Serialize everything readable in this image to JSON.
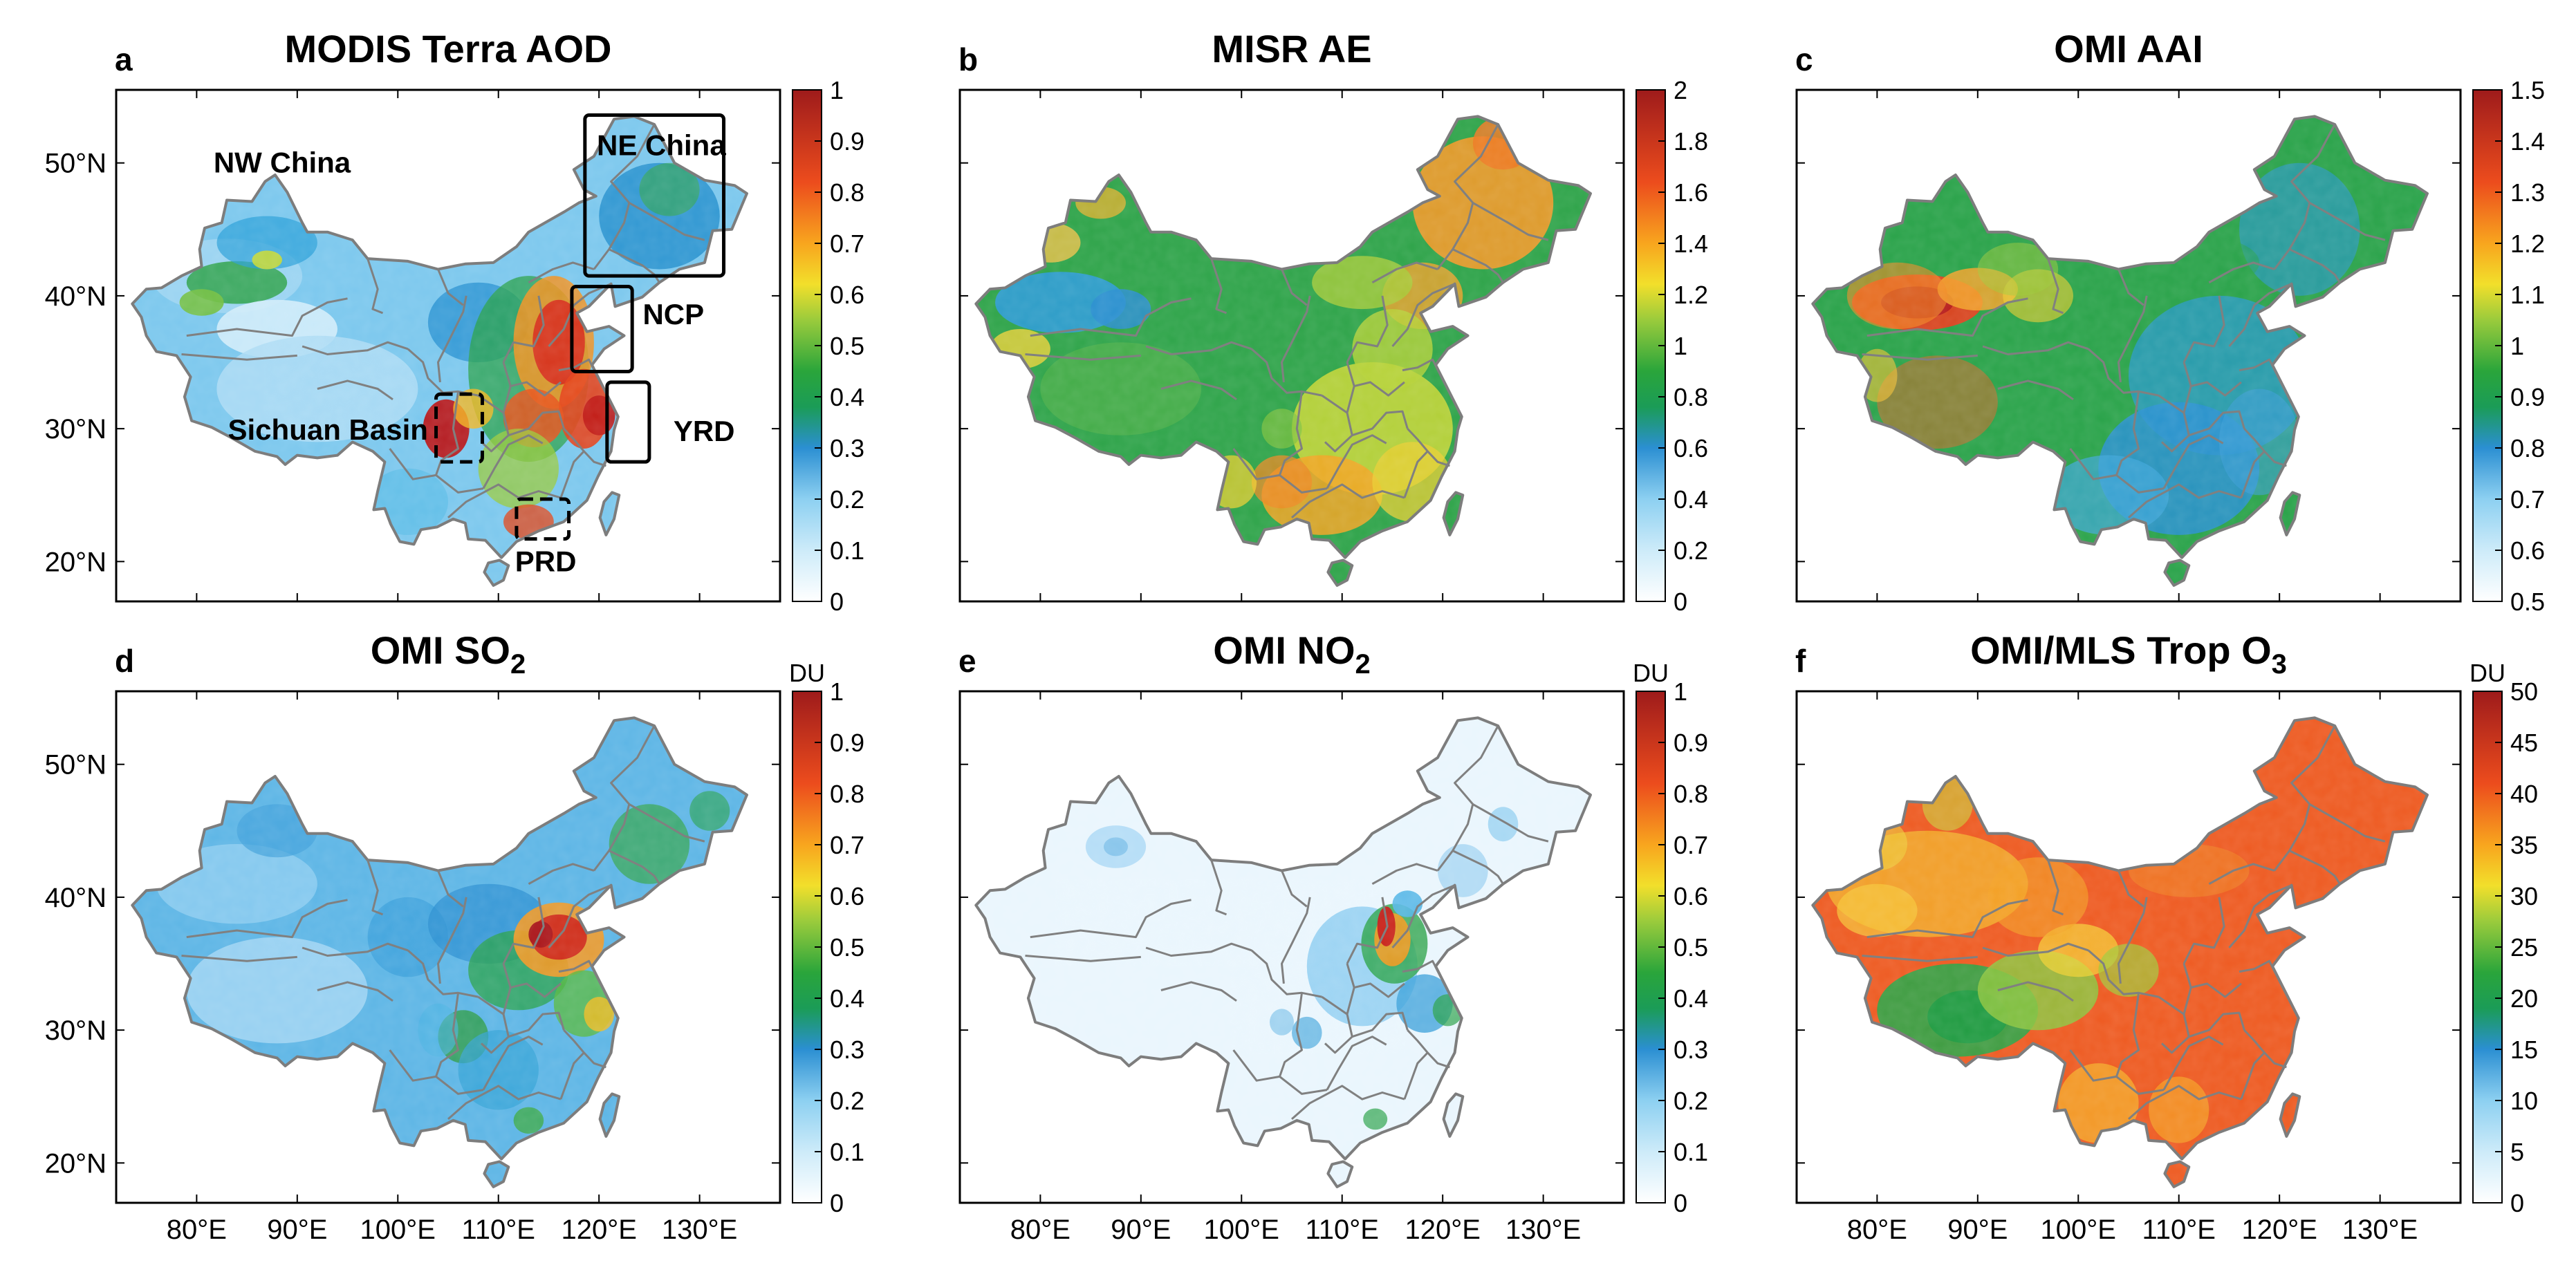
{
  "figure": {
    "panels": [
      {
        "letter": "a",
        "title": "MODIS Terra AOD",
        "title_sub": "",
        "unit": "",
        "colorbar_ticks": [
          "1",
          "0.9",
          "0.8",
          "0.7",
          "0.6",
          "0.5",
          "0.4",
          "0.3",
          "0.2",
          "0.1",
          "0"
        ],
        "scheme": "aod",
        "show_y_axis": true,
        "show_x_axis": false
      },
      {
        "letter": "b",
        "title": "MISR AE",
        "title_sub": "",
        "unit": "",
        "colorbar_ticks": [
          "2",
          "1.8",
          "1.6",
          "1.4",
          "1.2",
          "1",
          "0.8",
          "0.6",
          "0.4",
          "0.2",
          "0"
        ],
        "scheme": "ae",
        "show_y_axis": false,
        "show_x_axis": false
      },
      {
        "letter": "c",
        "title": "OMI AAI",
        "title_sub": "",
        "unit": "",
        "colorbar_ticks": [
          "1.5",
          "1.4",
          "1.3",
          "1.2",
          "1.1",
          "1",
          "0.9",
          "0.8",
          "0.7",
          "0.6",
          "0.5"
        ],
        "scheme": "aai",
        "show_y_axis": false,
        "show_x_axis": false
      },
      {
        "letter": "d",
        "title": "OMI SO",
        "title_sub": "2",
        "unit": "DU",
        "colorbar_ticks": [
          "1",
          "0.9",
          "0.8",
          "0.7",
          "0.6",
          "0.5",
          "0.4",
          "0.3",
          "0.2",
          "0.1",
          "0"
        ],
        "scheme": "so2",
        "show_y_axis": true,
        "show_x_axis": true
      },
      {
        "letter": "e",
        "title": "OMI NO",
        "title_sub": "2",
        "unit": "DU",
        "colorbar_ticks": [
          "1",
          "0.9",
          "0.8",
          "0.7",
          "0.6",
          "0.5",
          "0.4",
          "0.3",
          "0.2",
          "0.1",
          "0"
        ],
        "scheme": "no2",
        "show_y_axis": false,
        "show_x_axis": true
      },
      {
        "letter": "f",
        "title": "OMI/MLS Trop O",
        "title_sub": "3",
        "unit": "DU",
        "colorbar_ticks": [
          "50",
          "45",
          "40",
          "35",
          "30",
          "25",
          "20",
          "15",
          "10",
          "5",
          "0"
        ],
        "scheme": "o3",
        "show_y_axis": false,
        "show_x_axis": true
      }
    ],
    "latitude_ticks": [
      "50°N",
      "40°N",
      "30°N",
      "20°N"
    ],
    "longitude_ticks": [
      "80°E",
      "90°E",
      "100°E",
      "110°E",
      "120°E",
      "130°E"
    ],
    "regions": [
      {
        "name": "NW China",
        "line_style": "solid"
      },
      {
        "name": "NE China",
        "line_style": "solid"
      },
      {
        "name": "NCP",
        "line_style": "solid"
      },
      {
        "name": "YRD",
        "line_style": "solid"
      },
      {
        "name": "Sichuan Basin",
        "line_style": "dashed"
      },
      {
        "name": "PRD",
        "line_style": "dashed"
      }
    ],
    "colors": {
      "colormap": [
        "#f6fbfe",
        "#b3e1f7",
        "#63bde8",
        "#2590d0",
        "#16a243",
        "#84c33a",
        "#f0e12f",
        "#f7931e",
        "#e8421d",
        "#b2181b"
      ],
      "o3_colormap": [
        "#ffffff",
        "#8fd0f0",
        "#2a8ccd",
        "#1ca04a",
        "#8dc63f",
        "#ffe033",
        "#f9a11b",
        "#ee4a1e",
        "#b81414"
      ],
      "border": "#808080"
    }
  }
}
